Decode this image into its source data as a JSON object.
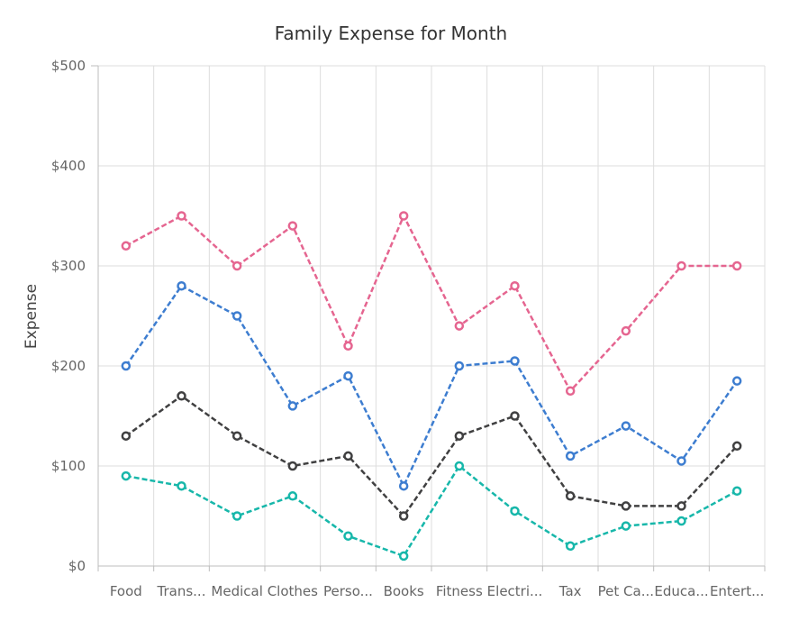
{
  "chart_data": {
    "type": "line",
    "title": "Family Expense for Month",
    "xlabel": "",
    "ylabel": "Expense",
    "ylim": [
      0,
      500
    ],
    "yticks": [
      "$0",
      "$100",
      "$200",
      "$300",
      "$400",
      "$500"
    ],
    "categories": [
      "Food",
      "Trans...",
      "Medical",
      "Clothes",
      "Perso...",
      "Books",
      "Fitness",
      "Electri...",
      "Tax",
      "Pet Ca...",
      "Educa...",
      "Entert..."
    ],
    "grid": true,
    "line_style": "dashed",
    "series": [
      {
        "color": "#e56590",
        "values": [
          320,
          350,
          300,
          340,
          220,
          350,
          240,
          280,
          175,
          235,
          300,
          300
        ]
      },
      {
        "color": "#3d7dd0",
        "values": [
          200,
          280,
          250,
          160,
          190,
          80,
          200,
          205,
          110,
          140,
          105,
          185
        ]
      },
      {
        "color": "#404041",
        "values": [
          130,
          170,
          130,
          100,
          110,
          50,
          130,
          150,
          70,
          60,
          60,
          120
        ]
      },
      {
        "color": "#17b7aa",
        "values": [
          90,
          80,
          50,
          70,
          30,
          10,
          100,
          55,
          20,
          40,
          45,
          75
        ]
      }
    ]
  }
}
